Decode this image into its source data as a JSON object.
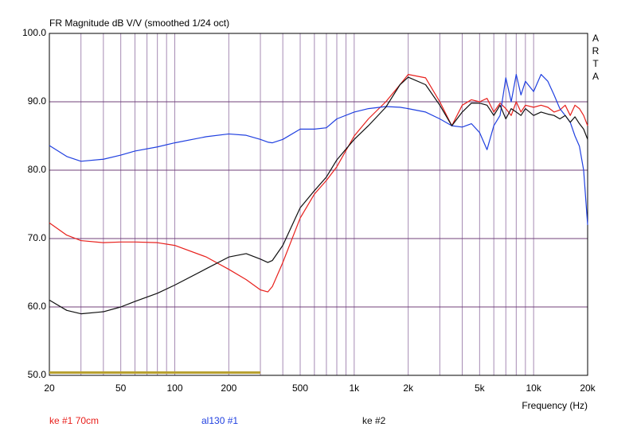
{
  "chart_data": {
    "type": "line",
    "title": "FR Magnitude dB V/V (smoothed 1/24 oct)",
    "xlabel": "Frequency (Hz)",
    "side_label": [
      "A",
      "R",
      "T",
      "A"
    ],
    "xscale": "log",
    "grid": true,
    "legend": "bottom",
    "xlim": [
      20,
      20000
    ],
    "ylim": [
      50,
      100
    ],
    "xticks": [
      20,
      50,
      100,
      200,
      500,
      {
        "value": 1000,
        "label": "1k"
      },
      {
        "value": 2000,
        "label": "2k"
      },
      {
        "value": 5000,
        "label": "5k"
      },
      {
        "value": 10000,
        "label": "10k"
      },
      {
        "value": 20000,
        "label": "20k"
      }
    ],
    "xgrid": [
      20,
      30,
      40,
      50,
      60,
      70,
      80,
      90,
      100,
      200,
      300,
      400,
      500,
      600,
      700,
      800,
      900,
      1000,
      2000,
      3000,
      4000,
      5000,
      6000,
      7000,
      8000,
      9000,
      10000,
      20000
    ],
    "yticks": [
      {
        "value": 50,
        "label": "50.0"
      },
      {
        "value": 60,
        "label": "60.0"
      },
      {
        "value": 70,
        "label": "70.0"
      },
      {
        "value": 80,
        "label": "80.0"
      },
      {
        "value": 90,
        "label": "90.0"
      },
      {
        "value": 100,
        "label": "100.0"
      }
    ],
    "x": [
      20,
      25,
      30,
      40,
      50,
      60,
      80,
      100,
      150,
      200,
      250,
      300,
      330,
      350,
      400,
      500,
      600,
      700,
      800,
      1000,
      1200,
      1500,
      1800,
      2000,
      2500,
      3000,
      3500,
      4000,
      4500,
      5000,
      5500,
      6000,
      6500,
      7000,
      7500,
      8000,
      8500,
      9000,
      10000,
      11000,
      12000,
      13000,
      14000,
      15000,
      16000,
      17000,
      18000,
      19000,
      20000
    ],
    "series": [
      {
        "name": "ke #1 70cm",
        "color": "#e8201c",
        "values": [
          72.3,
          70.5,
          69.7,
          69.4,
          69.5,
          69.5,
          69.4,
          69,
          67.3,
          65.5,
          64,
          62.5,
          62.2,
          63,
          66.5,
          73,
          76.5,
          78.5,
          80.5,
          85,
          87.5,
          90,
          92.5,
          94,
          93.5,
          90,
          86.5,
          89.5,
          90.3,
          90,
          90.5,
          88.5,
          89.8,
          89,
          88,
          90,
          88.5,
          89.5,
          89.2,
          89.5,
          89.2,
          88.5,
          88.8,
          89.5,
          88,
          89.5,
          89,
          88,
          86.5
        ]
      },
      {
        "name": "al130 #1",
        "color": "#2040e0",
        "values": [
          83.6,
          82,
          81.3,
          81.6,
          82.2,
          82.8,
          83.4,
          84,
          84.9,
          85.3,
          85.1,
          84.5,
          84.1,
          84,
          84.5,
          86,
          86,
          86.2,
          87.5,
          88.5,
          89,
          89.3,
          89.2,
          89,
          88.5,
          87.5,
          86.5,
          86.3,
          86.8,
          85.5,
          83,
          86.5,
          88,
          93.5,
          90,
          94,
          91,
          93,
          91.5,
          94,
          93,
          91,
          89,
          88,
          87,
          85,
          83.5,
          80,
          72
        ]
      },
      {
        "name": "ke #2",
        "color": "#101010",
        "values": [
          61,
          59.5,
          59,
          59.3,
          60,
          60.8,
          62,
          63.2,
          65.6,
          67.3,
          67.8,
          67,
          66.5,
          66.8,
          69,
          74.5,
          77,
          79,
          81.5,
          84.5,
          86.5,
          89.2,
          92.5,
          93.6,
          92.5,
          89.5,
          86.5,
          88.5,
          89.8,
          89.8,
          89.5,
          88,
          89.5,
          87.5,
          89,
          88.5,
          88,
          89,
          88,
          88.5,
          88.2,
          88,
          87.5,
          88,
          87,
          87.8,
          86.8,
          86,
          84.5
        ]
      },
      {
        "color": "#b8a030",
        "x": [
          20,
          300
        ],
        "values": [
          50.4,
          50.4
        ]
      }
    ]
  }
}
